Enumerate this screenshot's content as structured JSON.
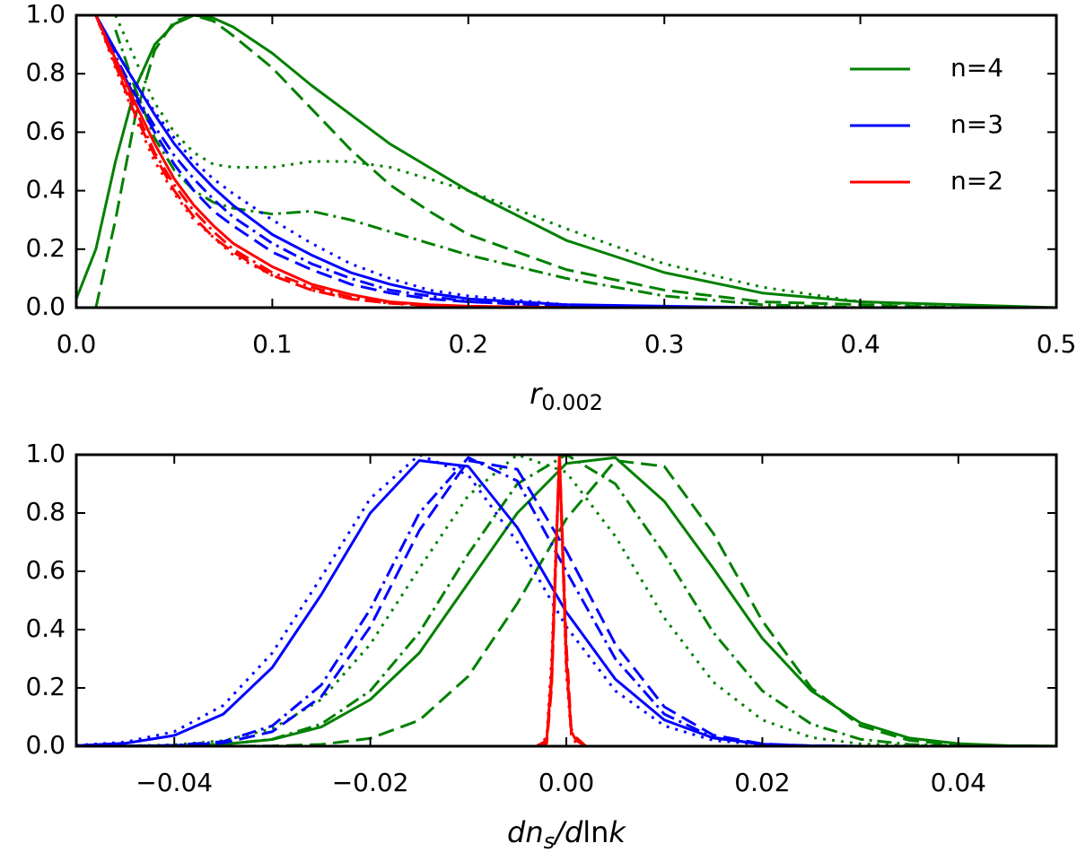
{
  "chart_data": [
    {
      "type": "line",
      "xlim": [
        0,
        0.5
      ],
      "ylim": [
        0,
        1
      ],
      "xticks": [
        {
          "value": 0,
          "label": "0.0"
        },
        0.1,
        0.2,
        0.3,
        0.4,
        0.5
      ],
      "yticks": [
        {
          "value": 0,
          "label": "0.0"
        },
        0.2,
        0.4,
        0.6,
        0.8,
        {
          "value": 1,
          "label": "1.0"
        }
      ],
      "xlabel": [
        {
          "text": "r",
          "italic": true
        },
        {
          "text": "0.002",
          "sub": true
        }
      ],
      "legend": "upper right",
      "x": [
        0,
        0.01,
        0.02,
        0.03,
        0.04,
        0.05,
        0.06,
        0.07,
        0.08,
        0.1,
        0.12,
        0.14,
        0.16,
        0.18,
        0.2,
        0.25,
        0.3,
        0.35,
        0.4,
        0.45,
        0.5
      ],
      "series": [
        {
          "name": "n=4",
          "color": "#008000",
          "dash": "solid",
          "values": [
            0.03,
            0.2,
            0.5,
            0.75,
            0.9,
            0.97,
            1.0,
            0.99,
            0.96,
            0.87,
            0.76,
            0.66,
            0.56,
            0.48,
            0.4,
            0.23,
            0.12,
            0.05,
            0.02,
            0.01,
            0.0
          ]
        },
        {
          "color": "#008000",
          "dash": "dashed",
          "values": [
            null,
            0.0,
            0.3,
            0.65,
            0.88,
            0.98,
            1.0,
            0.98,
            0.93,
            0.82,
            0.68,
            0.54,
            0.42,
            0.33,
            0.25,
            0.13,
            0.06,
            0.02,
            0.01,
            0.0,
            0.0
          ]
        },
        {
          "color": "#008000",
          "dash": "dotted",
          "values": [
            null,
            null,
            1.0,
            0.85,
            0.7,
            0.6,
            0.53,
            0.49,
            0.48,
            0.48,
            0.5,
            0.5,
            0.48,
            0.44,
            0.4,
            0.27,
            0.15,
            0.07,
            0.02,
            0.005,
            0.0
          ]
        },
        {
          "color": "#008000",
          "dash": "dashdot",
          "values": [
            null,
            null,
            0.95,
            0.75,
            0.58,
            0.47,
            0.4,
            0.36,
            0.34,
            0.32,
            0.33,
            0.3,
            0.26,
            0.22,
            0.18,
            0.1,
            0.04,
            0.01,
            0.0,
            0.0,
            0.0
          ]
        },
        {
          "name": "n=3",
          "color": "#0000ff",
          "dash": "solid",
          "values": [
            null,
            1.0,
            0.88,
            0.77,
            0.66,
            0.56,
            0.48,
            0.41,
            0.35,
            0.25,
            0.18,
            0.12,
            0.08,
            0.05,
            0.03,
            0.01,
            0.005,
            0.0,
            0.0,
            0.0,
            0.0
          ]
        },
        {
          "color": "#0000ff",
          "dash": "dashed",
          "values": [
            null,
            1.0,
            0.85,
            0.72,
            0.6,
            0.49,
            0.4,
            0.33,
            0.28,
            0.19,
            0.13,
            0.08,
            0.05,
            0.03,
            0.02,
            0.005,
            0.0,
            0.0,
            0.0,
            0.0,
            0.0
          ]
        },
        {
          "color": "#0000ff",
          "dash": "dotted",
          "values": [
            null,
            1.0,
            0.88,
            0.77,
            0.67,
            0.58,
            0.5,
            0.44,
            0.39,
            0.3,
            0.22,
            0.15,
            0.1,
            0.06,
            0.04,
            0.01,
            0.003,
            0.0,
            0.0,
            0.0,
            0.0
          ]
        },
        {
          "color": "#0000ff",
          "dash": "dashdot",
          "values": [
            null,
            1.0,
            0.86,
            0.73,
            0.62,
            0.52,
            0.44,
            0.37,
            0.31,
            0.22,
            0.15,
            0.1,
            0.06,
            0.04,
            0.02,
            0.005,
            0.0,
            0.0,
            0.0,
            0.0,
            0.0
          ]
        },
        {
          "name": "n=2",
          "color": "#ff0000",
          "dash": "solid",
          "values": [
            null,
            1.0,
            0.85,
            0.7,
            0.56,
            0.44,
            0.35,
            0.28,
            0.22,
            0.14,
            0.08,
            0.045,
            0.02,
            0.01,
            0.005,
            0.0,
            0.0,
            0.0,
            0.0,
            0.0,
            0.0
          ]
        },
        {
          "color": "#ff0000",
          "dash": "dashed",
          "values": [
            null,
            1.0,
            0.83,
            0.66,
            0.52,
            0.4,
            0.31,
            0.24,
            0.19,
            0.11,
            0.06,
            0.03,
            0.015,
            0.007,
            0.003,
            0.0,
            0.0,
            0.0,
            0.0,
            0.0,
            0.0
          ]
        },
        {
          "color": "#ff0000",
          "dash": "dotted",
          "values": [
            null,
            1.0,
            0.82,
            0.65,
            0.5,
            0.39,
            0.3,
            0.24,
            0.18,
            0.11,
            0.06,
            0.03,
            0.015,
            0.007,
            0.003,
            0.0,
            0.0,
            0.0,
            0.0,
            0.0,
            0.0
          ]
        },
        {
          "color": "#ff0000",
          "dash": "dashdot",
          "values": [
            null,
            1.0,
            0.84,
            0.68,
            0.53,
            0.42,
            0.33,
            0.26,
            0.2,
            0.12,
            0.07,
            0.035,
            0.018,
            0.008,
            0.004,
            0.0,
            0.0,
            0.0,
            0.0,
            0.0,
            0.0
          ]
        }
      ]
    },
    {
      "type": "line",
      "xlim": [
        -0.05,
        0.05
      ],
      "ylim": [
        0,
        1
      ],
      "xticks": [
        {
          "value": -0.04,
          "label": "−0.04"
        },
        {
          "value": -0.02,
          "label": "−0.02"
        },
        {
          "value": 0,
          "label": "0.00"
        },
        0.02,
        0.04
      ],
      "yticks": [
        {
          "value": 0,
          "label": "0.0"
        },
        0.2,
        0.4,
        0.6,
        0.8,
        {
          "value": 1,
          "label": "1.0"
        }
      ],
      "xlabel": [
        {
          "text": "dn",
          "italic": true
        },
        {
          "text": "s",
          "italic": true,
          "sub": true
        },
        {
          "text": "/d",
          "italic": true
        },
        {
          "text": "ln"
        },
        {
          "text": "k",
          "italic": true
        }
      ],
      "x": [
        -0.05,
        -0.045,
        -0.04,
        -0.035,
        -0.03,
        -0.025,
        -0.02,
        -0.015,
        -0.01,
        -0.005,
        0,
        0.005,
        0.01,
        0.015,
        0.02,
        0.025,
        0.03,
        0.035,
        0.04,
        0.045,
        0.05
      ],
      "series": [
        {
          "color": "#008000",
          "dash": "solid",
          "values": [
            0.0,
            0.0003,
            0.0016,
            0.0067,
            0.023,
            0.066,
            0.16,
            0.32,
            0.56,
            0.8,
            0.97,
            0.99,
            0.84,
            0.61,
            0.37,
            0.19,
            0.08,
            0.028,
            0.009,
            0.002,
            0.0005
          ]
        },
        {
          "color": "#008000",
          "dash": "dashed",
          "values": [
            0,
            0,
            0,
            0.0002,
            0.001,
            0.006,
            0.027,
            0.089,
            0.24,
            0.49,
            0.78,
            0.98,
            0.96,
            0.73,
            0.43,
            0.2,
            0.07,
            0.02,
            0.004,
            0.0007,
            0
          ]
        },
        {
          "color": "#008000",
          "dash": "dotted",
          "values": [
            0.0002,
            0.001,
            0.005,
            0.019,
            0.06,
            0.16,
            0.35,
            0.61,
            0.86,
            1.0,
            0.94,
            0.72,
            0.44,
            0.22,
            0.09,
            0.03,
            0.008,
            0.002,
            0,
            0,
            0
          ]
        },
        {
          "color": "#008000",
          "dash": "dashdot",
          "values": [
            0,
            0.0002,
            0.0014,
            0.006,
            0.024,
            0.076,
            0.19,
            0.39,
            0.66,
            0.9,
            1.0,
            0.9,
            0.66,
            0.39,
            0.19,
            0.076,
            0.024,
            0.006,
            0.0014,
            0.0002,
            0
          ]
        },
        {
          "color": "#0000ff",
          "dash": "solid",
          "values": [
            0.002,
            0.01,
            0.037,
            0.11,
            0.27,
            0.52,
            0.8,
            0.98,
            0.96,
            0.75,
            0.46,
            0.23,
            0.09,
            0.028,
            0.007,
            0.0014,
            0,
            0,
            0,
            0,
            0
          ]
        },
        {
          "color": "#0000ff",
          "dash": "dashed",
          "values": [
            0,
            0.0002,
            0.002,
            0.011,
            0.05,
            0.17,
            0.41,
            0.74,
            0.98,
            0.95,
            0.67,
            0.35,
            0.135,
            0.038,
            0.008,
            0.0012,
            0,
            0,
            0,
            0,
            0
          ]
        },
        {
          "color": "#0000ff",
          "dash": "dotted",
          "values": [
            0.003,
            0.014,
            0.05,
            0.14,
            0.32,
            0.58,
            0.85,
            1.0,
            0.93,
            0.7,
            0.41,
            0.19,
            0.07,
            0.02,
            0.005,
            0.001,
            0,
            0,
            0,
            0,
            0
          ]
        },
        {
          "color": "#0000ff",
          "dash": "dashdot",
          "values": [
            0,
            0.0003,
            0.003,
            0.016,
            0.07,
            0.21,
            0.47,
            0.8,
            0.99,
            0.91,
            0.6,
            0.3,
            0.11,
            0.03,
            0.006,
            0.001,
            0,
            0,
            0,
            0,
            0
          ]
        },
        {
          "color": "#ff0000",
          "dash": "solid",
          "x": [
            -0.003,
            -0.002,
            -0.0015,
            -0.0007,
            0,
            0.0005,
            0.001,
            0.002
          ],
          "values": [
            0,
            0.02,
            0.25,
            1.0,
            0.3,
            0.05,
            0.02,
            0
          ]
        },
        {
          "color": "#ff0000",
          "dash": "dashed",
          "x": [
            -0.003,
            -0.002,
            -0.0015,
            -0.0007,
            0,
            0.0005,
            0.001,
            0.002
          ],
          "values": [
            0,
            0.01,
            0.2,
            1.0,
            0.35,
            0.06,
            0.03,
            0
          ]
        },
        {
          "color": "#ff0000",
          "dash": "dotted",
          "x": [
            -0.003,
            -0.002,
            -0.0015,
            -0.0007,
            0,
            0.0005,
            0.001,
            0.002
          ],
          "values": [
            0,
            0.03,
            0.3,
            1.0,
            0.25,
            0.04,
            0.01,
            0
          ]
        },
        {
          "color": "#ff0000",
          "dash": "dashdot",
          "x": [
            -0.003,
            -0.002,
            -0.0015,
            -0.0007,
            0,
            0.0005,
            0.001,
            0.002
          ],
          "values": [
            0,
            0.02,
            0.22,
            1.0,
            0.28,
            0.05,
            0.02,
            0
          ]
        }
      ]
    }
  ]
}
